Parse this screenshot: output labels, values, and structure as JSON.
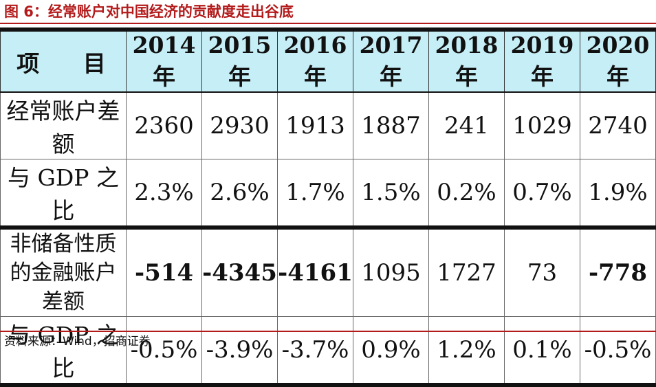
{
  "title": "图 6：经常账户对中国经济的贡献度走出谷底",
  "table": {
    "header": [
      "项 目",
      "2014 年",
      "2015 年",
      "2016 年",
      "2017 年",
      "2018 年",
      "2019 年",
      "2020 年"
    ],
    "rows": [
      {
        "label": "经常账户差额",
        "values": [
          "2360",
          "2930",
          "1913",
          "1887",
          "241",
          "1029",
          "2740"
        ]
      },
      {
        "label": "与 GDP 之比",
        "values": [
          "2.3%",
          "2.6%",
          "1.7%",
          "1.5%",
          "0.2%",
          "0.7%",
          "1.9%"
        ]
      },
      {
        "label": "非储备性质的金融账户差额",
        "values": [
          "-514",
          "-4345",
          "-4161",
          "1095",
          "1727",
          "73",
          "-778"
        ]
      },
      {
        "label": "与 GDP 之比",
        "values": [
          "-0.5%",
          "-3.9%",
          "-3.7%",
          "0.9%",
          "1.2%",
          "0.1%",
          "-0.5%"
        ]
      }
    ]
  },
  "source": "资料来源：Wind，招商证券"
}
